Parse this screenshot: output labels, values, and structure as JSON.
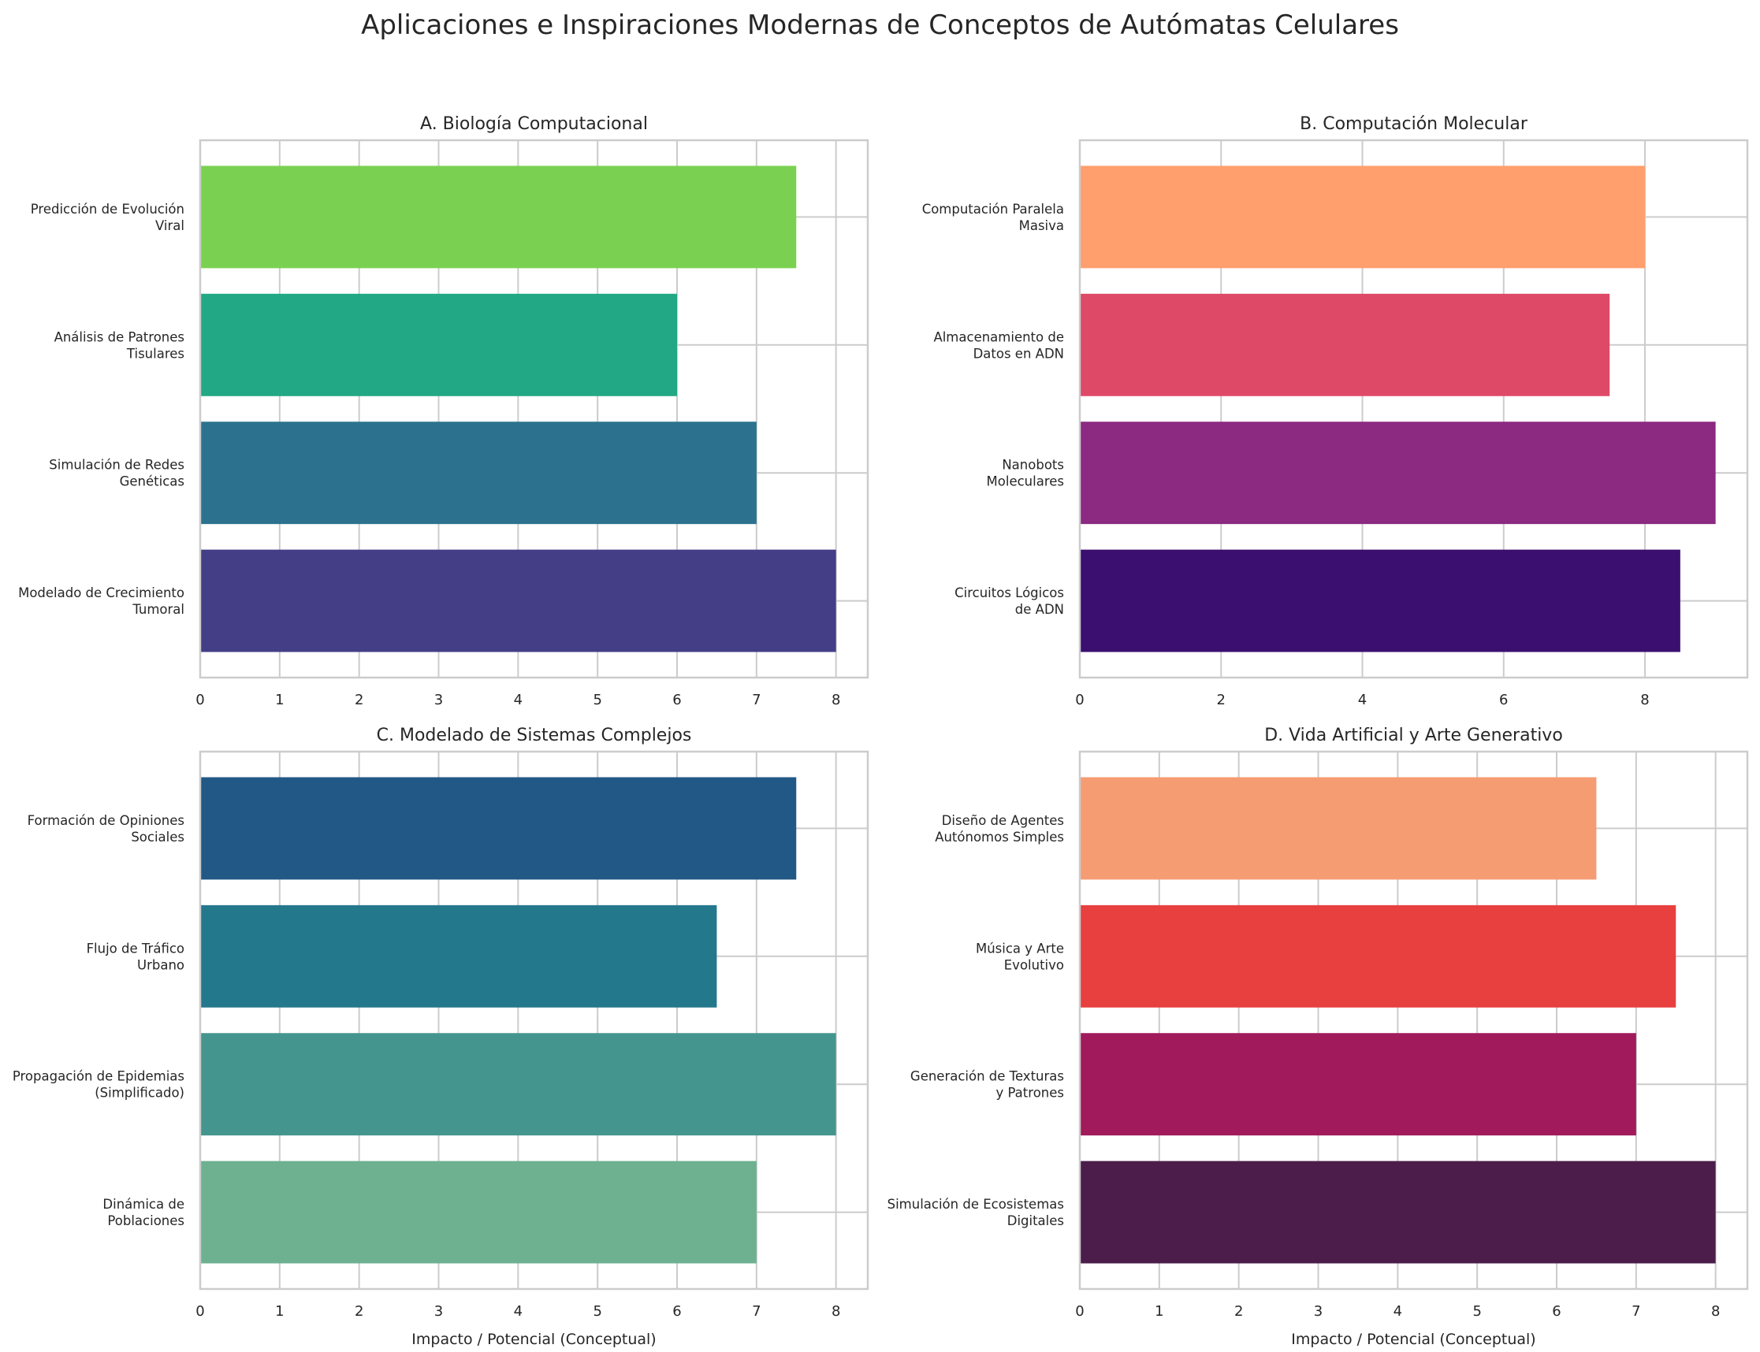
{
  "suptitle": "Aplicaciones e Inspiraciones Modernas de Conceptos de Autómatas Celulares",
  "chart_data": [
    {
      "type": "bar",
      "orientation": "horizontal",
      "title": "A. Biología Computacional",
      "xlabel": "",
      "categories": [
        "Modelado de Crecimiento\nTumoral",
        "Simulación de Redes\nGenéticas",
        "Análisis de Patrones\nTisulares",
        "Predicción de Evolución\nViral"
      ],
      "values": [
        8,
        7,
        6,
        7.5
      ],
      "colors": [
        "#433e85",
        "#2c728e",
        "#22a884",
        "#7ad151"
      ],
      "xlim": [
        0,
        8.4
      ],
      "xticks": [
        0,
        1,
        2,
        3,
        4,
        5,
        6,
        7,
        8
      ],
      "grid": true
    },
    {
      "type": "bar",
      "orientation": "horizontal",
      "title": "B. Computación Molecular",
      "xlabel": "",
      "categories": [
        "Circuitos Lógicos\nde ADN",
        "Nanobots\nMoleculares",
        "Almacenamiento de\nDatos en ADN",
        "Computación Paralela\nMasiva"
      ],
      "values": [
        8.5,
        9,
        7.5,
        8
      ],
      "colors": [
        "#3b0f70",
        "#8c2981",
        "#de4968",
        "#fe9f6d"
      ],
      "xlim": [
        0,
        9.45
      ],
      "xticks": [
        0,
        2,
        4,
        6,
        8
      ],
      "grid": true
    },
    {
      "type": "bar",
      "orientation": "horizontal",
      "title": "C. Modelado de Sistemas Complejos",
      "xlabel": "Impacto / Potencial (Conceptual)",
      "categories": [
        "Dinámica de\nPoblaciones",
        "Propagación de Epidemias\n(Simplificado)",
        "Flujo de Tráfico\nUrbano",
        "Formación de Opiniones\nSociales"
      ],
      "values": [
        7,
        8,
        6.5,
        7.5
      ],
      "colors": [
        "#6db191",
        "#44958d",
        "#24788c",
        "#225886"
      ],
      "xlim": [
        0,
        8.4
      ],
      "xticks": [
        0,
        1,
        2,
        3,
        4,
        5,
        6,
        7,
        8
      ],
      "grid": true
    },
    {
      "type": "bar",
      "orientation": "horizontal",
      "title": "D. Vida Artificial y Arte Generativo",
      "xlabel": "Impacto / Potencial (Conceptual)",
      "categories": [
        "Simulación de Ecosistemas\nDigitales",
        "Generación de Texturas\ny Patrones",
        "Música y Arte\nEvolutivo",
        "Diseño de Agentes\nAutónomos Simples"
      ],
      "values": [
        8,
        7,
        7.5,
        6.5
      ],
      "colors": [
        "#4c1d4b",
        "#a11a5b",
        "#e83f3f",
        "#f69c73"
      ],
      "xlim": [
        0,
        8.4
      ],
      "xticks": [
        0,
        1,
        2,
        3,
        4,
        5,
        6,
        7,
        8
      ],
      "grid": true
    }
  ]
}
